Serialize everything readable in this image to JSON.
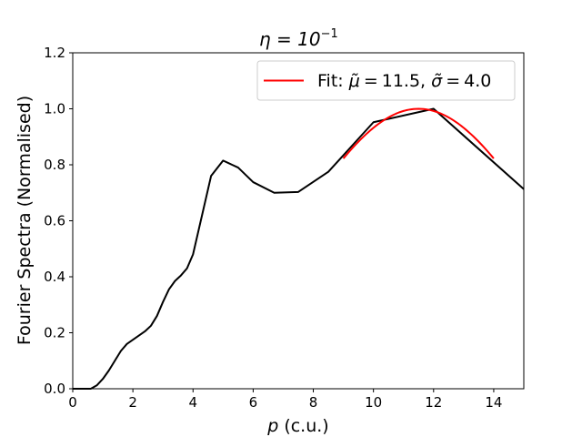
{
  "chart_data": {
    "type": "line",
    "title_math": "η = 10",
    "title_exp": "−1",
    "xlabel_var": "p",
    "xlabel_unit": "(c.u.)",
    "ylabel": "Fourier Spectra (Normalised)",
    "xlim": [
      0,
      15
    ],
    "ylim": [
      0,
      1.2
    ],
    "x_ticks": [
      "0",
      "2",
      "4",
      "6",
      "8",
      "10",
      "12",
      "14"
    ],
    "y_ticks": [
      "0.0",
      "0.2",
      "0.4",
      "0.6",
      "0.8",
      "1.0",
      "1.2"
    ],
    "legend": {
      "placement": "top-right",
      "label_prefix": "Fit: ",
      "mu_symbol": "μ̃",
      "mu_value": "11.5",
      "sigma_symbol": "σ̃",
      "sigma_value": "4.0"
    },
    "series": [
      {
        "color": "#000000",
        "x": [
          0,
          0.6,
          0.8,
          1.0,
          1.2,
          1.4,
          1.6,
          1.8,
          2.0,
          2.2,
          2.4,
          2.6,
          2.8,
          3.0,
          3.2,
          3.4,
          3.6,
          3.8,
          4.0,
          4.3,
          4.6,
          5.0,
          5.5,
          6.0,
          6.7,
          7.5,
          8.5,
          10.0,
          12.0,
          15.0
        ],
        "y": [
          0.0,
          0.0,
          0.012,
          0.035,
          0.065,
          0.1,
          0.135,
          0.16,
          0.175,
          0.19,
          0.205,
          0.225,
          0.26,
          0.31,
          0.355,
          0.385,
          0.405,
          0.43,
          0.48,
          0.62,
          0.76,
          0.815,
          0.79,
          0.738,
          0.7,
          0.703,
          0.775,
          0.952,
          1.0,
          0.713
        ]
      },
      {
        "name": "Fit: μ̃ = 11.5, σ̃ = 4.0",
        "color": "#ff0000",
        "fit": {
          "mu": 11.5,
          "sigma": 4.0,
          "amplitude": 1.0,
          "x_start": 9.0,
          "x_end": 14.0
        }
      }
    ]
  }
}
